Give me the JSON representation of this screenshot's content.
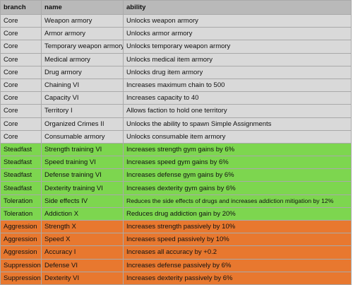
{
  "table": {
    "header": [
      "branch",
      "name",
      "ability"
    ],
    "rows": [
      [
        "Core",
        "Weapon armory",
        "Unlocks weapon armory"
      ],
      [
        "Core",
        "Armor armory",
        "Unlocks armor armory"
      ],
      [
        "Core",
        "Temporary weapon armory",
        "Unlocks temporary weapon armory"
      ],
      [
        "Core",
        "Medical armory",
        "Unlocks medical item armory"
      ],
      [
        "Core",
        "Drug armory",
        "Unlocks drug item armory"
      ],
      [
        "Core",
        "Chaining VI",
        "Increases maximum chain to 500"
      ],
      [
        "Core",
        "Capacity VI",
        "Increases capacity to 40"
      ],
      [
        "Core",
        "Territory I",
        "Allows faction to hold one territory"
      ],
      [
        "Core",
        "Organized Crimes II",
        "Unlocks the ability to spawn Simple Assignments"
      ],
      [
        "Core",
        "Consumable armory",
        "Unlocks consumable item armory"
      ],
      [
        "Steadfast",
        "Strength training VI",
        "Increases strength gym gains by 6%"
      ],
      [
        "Steadfast",
        "Speed training VI",
        "Increases speed gym gains by 6%"
      ],
      [
        "Steadfast",
        "Defense training VI",
        "Increases defense gym gains by 6%"
      ],
      [
        "Steadfast",
        "Dexterity training VI",
        "Increases dexterity gym gains by 6%"
      ],
      [
        "Toleration",
        "Side effects IV",
        "Reduces the side effects of drugs and increases addiction mitigation by 12%"
      ],
      [
        "Toleration",
        "Addiction X",
        "Reduces drug addiction gain by 20%"
      ],
      [
        "Aggression",
        "Strength X",
        "Increases strength passively by 10%"
      ],
      [
        "Aggression",
        "Speed X",
        "Increases speed passively by 10%"
      ],
      [
        "Aggression",
        "Accuracy I",
        "Increases all accuracy by +0.2"
      ],
      [
        "Suppression",
        "Defense VI",
        "Increases defense passively by 6%"
      ],
      [
        "Suppression",
        "Dexterity VI",
        "Increases dexterity passively by 6%"
      ]
    ]
  }
}
